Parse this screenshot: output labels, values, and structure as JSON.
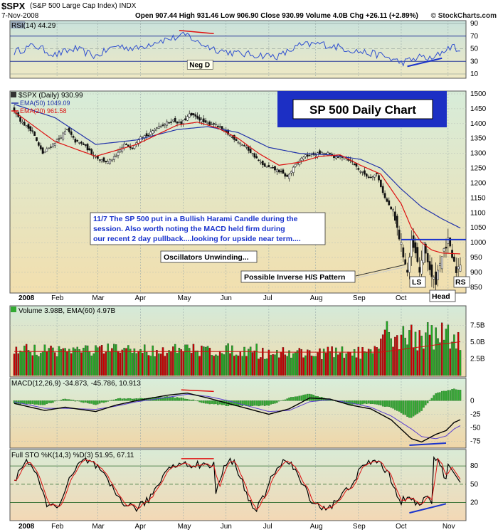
{
  "header": {
    "symbol": "$SPX",
    "name": "(S&P 500 Large Cap Index) INDX",
    "date": "7-Nov-2008",
    "ohlc": "Open 907.44  High 931.46  Low 906.90  Close 930.99  Volume 4.0B  Chg +26.11 (+2.89%)",
    "brand": "© StockCharts.com"
  },
  "panels": {
    "rsi_label": "RSI(14) 44.29",
    "price_label": "$SPX (Daily) 930.99",
    "ema50_label": "EMA(50) 1049.09",
    "ema20_label": "EMA(20) 961.58",
    "volume_label": "Volume 3.98B, EMA(60) 4.97B",
    "macd_label": "MACD(12,26,9) -34.873, -45.786, 10.913",
    "sto_label": "Full STO %K(14,3) %D(3) 51.95, 67.11"
  },
  "annotations": {
    "title_box": "SP 500 Daily Chart",
    "comment_line1": "11/7  The SP 500 put in a Bullish Harami Candle during the",
    "comment_line2": "session.  Also worth noting the MACD held firm during",
    "comment_line3": "our recent 2 day pullback....looking for upside near term....",
    "oscillators": "Oscillators Unwinding...",
    "pattern": "Possible Inverse H/S Pattern",
    "neg_d": "Neg D",
    "ls": "LS",
    "head": "Head",
    "rs": "RS"
  },
  "colors": {
    "price_up": "#22aa22",
    "price_down": "#cc0000",
    "ema50": "#2233aa",
    "ema20": "#dd1111",
    "annotation_blue": "#1a33cc",
    "title_box_bg": "#1c2fc4"
  },
  "chart_data": {
    "type": "line",
    "x_months": [
      "2008",
      "Feb",
      "Mar",
      "Apr",
      "May",
      "Jun",
      "Jul",
      "Aug",
      "Sep",
      "Oct",
      "Nov"
    ],
    "price": {
      "yticks": [
        850,
        900,
        950,
        1000,
        1050,
        1100,
        1150,
        1200,
        1250,
        1300,
        1350,
        1400,
        1450,
        1500
      ],
      "close_keypoints": [
        [
          0,
          1447
        ],
        [
          3,
          1411
        ],
        [
          6,
          1390
        ],
        [
          9,
          1375
        ],
        [
          12,
          1325
        ],
        [
          14,
          1300
        ],
        [
          18,
          1325
        ],
        [
          22,
          1350
        ],
        [
          26,
          1380
        ],
        [
          30,
          1340
        ],
        [
          34,
          1330
        ],
        [
          38,
          1300
        ],
        [
          42,
          1280
        ],
        [
          46,
          1270
        ],
        [
          50,
          1290
        ],
        [
          54,
          1330
        ],
        [
          58,
          1320
        ],
        [
          62,
          1360
        ],
        [
          66,
          1360
        ],
        [
          70,
          1390
        ],
        [
          74,
          1400
        ],
        [
          78,
          1410
        ],
        [
          82,
          1400
        ],
        [
          86,
          1430
        ],
        [
          90,
          1420
        ],
        [
          94,
          1400
        ],
        [
          98,
          1400
        ],
        [
          102,
          1380
        ],
        [
          106,
          1360
        ],
        [
          110,
          1340
        ],
        [
          114,
          1320
        ],
        [
          118,
          1290
        ],
        [
          122,
          1260
        ],
        [
          126,
          1250
        ],
        [
          130,
          1240
        ],
        [
          134,
          1220
        ],
        [
          138,
          1260
        ],
        [
          142,
          1290
        ],
        [
          146,
          1295
        ],
        [
          150,
          1300
        ],
        [
          154,
          1300
        ],
        [
          158,
          1285
        ],
        [
          162,
          1290
        ],
        [
          166,
          1270
        ],
        [
          170,
          1240
        ],
        [
          174,
          1220
        ],
        [
          178,
          1230
        ],
        [
          182,
          1150
        ],
        [
          186,
          1100
        ],
        [
          190,
          990
        ],
        [
          193,
          900
        ],
        [
          195,
          1000
        ],
        [
          197,
          960
        ],
        [
          199,
          900
        ],
        [
          201,
          990
        ],
        [
          203,
          940
        ],
        [
          205,
          880
        ],
        [
          207,
          870
        ],
        [
          209,
          940
        ],
        [
          211,
          970
        ],
        [
          213,
          1005
        ],
        [
          215,
          950
        ],
        [
          217,
          905
        ],
        [
          219,
          931
        ]
      ],
      "ema20_keypoints": [
        [
          0,
          1440
        ],
        [
          20,
          1340
        ],
        [
          40,
          1290
        ],
        [
          60,
          1330
        ],
        [
          80,
          1395
        ],
        [
          90,
          1405
        ],
        [
          100,
          1385
        ],
        [
          110,
          1350
        ],
        [
          120,
          1300
        ],
        [
          130,
          1260
        ],
        [
          140,
          1270
        ],
        [
          150,
          1290
        ],
        [
          160,
          1295
        ],
        [
          170,
          1260
        ],
        [
          180,
          1230
        ],
        [
          190,
          1130
        ],
        [
          195,
          1050
        ],
        [
          200,
          1000
        ],
        [
          205,
          975
        ],
        [
          210,
          965
        ],
        [
          219,
          962
        ]
      ],
      "ema50_keypoints": [
        [
          0,
          1465
        ],
        [
          20,
          1420
        ],
        [
          40,
          1330
        ],
        [
          60,
          1345
        ],
        [
          80,
          1380
        ],
        [
          95,
          1390
        ],
        [
          110,
          1370
        ],
        [
          125,
          1320
        ],
        [
          140,
          1300
        ],
        [
          155,
          1295
        ],
        [
          170,
          1280
        ],
        [
          180,
          1250
        ],
        [
          190,
          1180
        ],
        [
          200,
          1120
        ],
        [
          210,
          1080
        ],
        [
          219,
          1049
        ]
      ],
      "neckline": 1010
    },
    "rsi": {
      "yticks": [
        90,
        70,
        50,
        30,
        10
      ],
      "current": 44.29
    },
    "volume": {
      "yticks": [
        "7.5B",
        "5.0B",
        "2.5B"
      ],
      "volume_B": 3.98,
      "ema60_B": 4.97
    },
    "macd": {
      "yticks": [
        0,
        -25,
        -50,
        -75
      ],
      "macd": -34.873,
      "signal": -45.786,
      "histogram": 10.913
    },
    "stochastic": {
      "yticks": [
        80,
        50,
        20
      ],
      "k": 51.95,
      "d": 67.11
    }
  }
}
